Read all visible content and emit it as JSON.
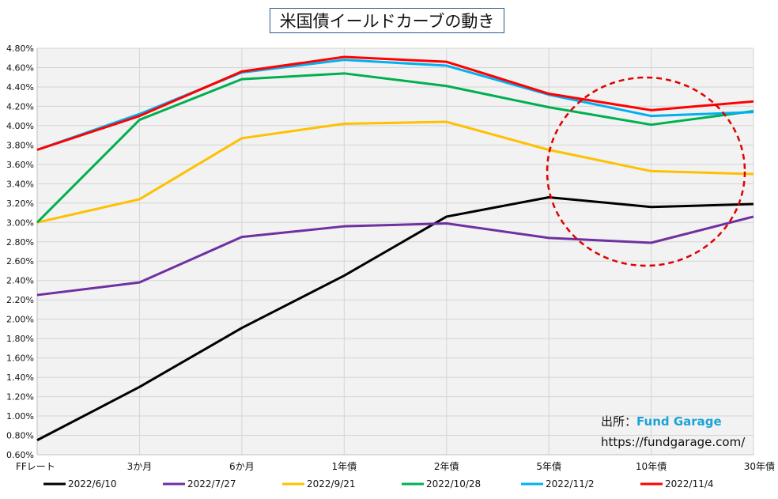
{
  "chart_data": {
    "type": "line",
    "title": "米国債イールドカーブの動き",
    "categories": [
      "FFレート",
      "3か月",
      "6か月",
      "1年債",
      "2年債",
      "5年債",
      "10年債",
      "30年債"
    ],
    "y_ticks": [
      "0.60%",
      "0.80%",
      "1.00%",
      "1.20%",
      "1.40%",
      "1.60%",
      "1.80%",
      "2.00%",
      "2.20%",
      "2.40%",
      "2.60%",
      "2.80%",
      "3.00%",
      "3.20%",
      "3.40%",
      "3.60%",
      "3.80%",
      "4.00%",
      "4.20%",
      "4.40%",
      "4.60%",
      "4.80%"
    ],
    "ylim": [
      0.6,
      4.8
    ],
    "y_unit": "%",
    "grid": true,
    "legend_position": "bottom",
    "series": [
      {
        "name": "2022/6/10",
        "color": "#000000",
        "values": [
          0.75,
          1.3,
          1.91,
          2.45,
          3.06,
          3.26,
          3.16,
          3.19
        ]
      },
      {
        "name": "2022/7/27",
        "color": "#7030a0",
        "values": [
          2.25,
          2.38,
          2.85,
          2.96,
          2.99,
          2.84,
          2.79,
          3.06
        ]
      },
      {
        "name": "2022/9/21",
        "color": "#ffc000",
        "values": [
          3.0,
          3.24,
          3.87,
          4.02,
          4.04,
          3.75,
          3.53,
          3.5
        ]
      },
      {
        "name": "2022/10/28",
        "color": "#00b050",
        "values": [
          3.0,
          4.06,
          4.48,
          4.54,
          4.41,
          4.19,
          4.01,
          4.15
        ]
      },
      {
        "name": "2022/11/2",
        "color": "#00b0f0",
        "values": [
          3.75,
          4.12,
          4.55,
          4.68,
          4.62,
          4.32,
          4.1,
          4.14
        ]
      },
      {
        "name": "2022/11/4",
        "color": "#ff0000",
        "values": [
          3.75,
          4.1,
          4.56,
          4.71,
          4.66,
          4.33,
          4.16,
          4.25
        ]
      }
    ],
    "annotation": {
      "type": "dashed-circle",
      "color": "#e00000"
    }
  },
  "source": {
    "label": "出所：",
    "brand": "Fund Garage",
    "url": "https://fundgarage.com/"
  }
}
